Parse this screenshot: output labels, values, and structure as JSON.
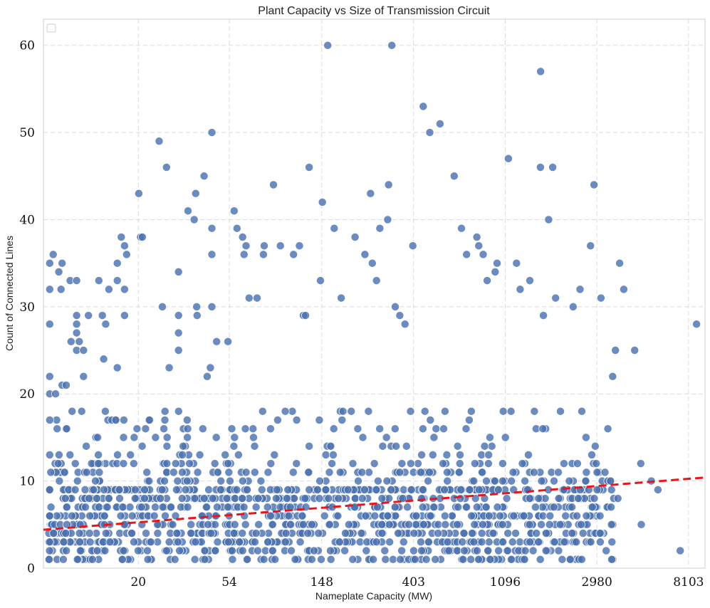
{
  "chart_data": {
    "type": "scatter",
    "title": "Plant Capacity vs Size of Transmission Circuit",
    "xlabel": "Nameplate Capacity (MW)",
    "ylabel": "Count of Connected Lines",
    "x_scale": "log",
    "xlim": [
      7.1,
      9700
    ],
    "ylim": [
      0,
      63
    ],
    "x_ticks": [
      20,
      54,
      148,
      403,
      1096,
      2980,
      8103
    ],
    "x_tick_labels": [
      "20",
      "54",
      "148",
      "403",
      "1096",
      "2980",
      "8103"
    ],
    "y_ticks": [
      0,
      10,
      20,
      30,
      40,
      50,
      60
    ],
    "y_tick_labels": [
      "0",
      "10",
      "20",
      "30",
      "40",
      "50",
      "60"
    ],
    "grid": true,
    "legend": "top-left (empty)",
    "colors": {
      "points": "#4c72b0",
      "trend": "#e8161b"
    },
    "trend_line": {
      "style": "dashed",
      "x": [
        7.1,
        9700
      ],
      "y": [
        4.4,
        10.4
      ]
    },
    "series": [
      {
        "points": [
          [
            7.6,
            35
          ],
          [
            7.6,
            32
          ],
          [
            7.6,
            28
          ],
          [
            7.6,
            22
          ],
          [
            7.6,
            20
          ],
          [
            7.6,
            17
          ],
          [
            7.6,
            13
          ],
          [
            7.6,
            9
          ],
          [
            7.6,
            6
          ],
          [
            7.6,
            3
          ],
          [
            7.9,
            36
          ],
          [
            8.1,
            20
          ],
          [
            8.4,
            34
          ],
          [
            8.6,
            32
          ],
          [
            8.7,
            35
          ],
          [
            8.7,
            21
          ],
          [
            9.1,
            21
          ],
          [
            9.5,
            33
          ],
          [
            9.6,
            26
          ],
          [
            9.7,
            18
          ],
          [
            10.2,
            33
          ],
          [
            10.2,
            29
          ],
          [
            10.2,
            28
          ],
          [
            10.2,
            27
          ],
          [
            10.2,
            25
          ],
          [
            10.5,
            26
          ],
          [
            11.0,
            25
          ],
          [
            11.0,
            22
          ],
          [
            11.6,
            29
          ],
          [
            13.0,
            33
          ],
          [
            13.5,
            29
          ],
          [
            13.7,
            24
          ],
          [
            14.0,
            28
          ],
          [
            14.5,
            32
          ],
          [
            15.9,
            35
          ],
          [
            15.9,
            33
          ],
          [
            15.9,
            23
          ],
          [
            16.6,
            38
          ],
          [
            17.2,
            37
          ],
          [
            17.6,
            36
          ],
          [
            17.2,
            32
          ],
          [
            17.2,
            29
          ],
          [
            20.1,
            43
          ],
          [
            20.5,
            38
          ],
          [
            20.9,
            38
          ],
          [
            25.1,
            49
          ],
          [
            27.2,
            46
          ],
          [
            26.0,
            30
          ],
          [
            28.0,
            23
          ],
          [
            31.0,
            34
          ],
          [
            31.0,
            29
          ],
          [
            31.0,
            27
          ],
          [
            31.0,
            25
          ],
          [
            34.4,
            41
          ],
          [
            36.8,
            40
          ],
          [
            37.4,
            43
          ],
          [
            38.0,
            29
          ],
          [
            37.8,
            30
          ],
          [
            41.0,
            45
          ],
          [
            42.4,
            22
          ],
          [
            43.9,
            23
          ],
          [
            44.6,
            50
          ],
          [
            44.6,
            39
          ],
          [
            44.6,
            36
          ],
          [
            44.6,
            30
          ],
          [
            47.0,
            26
          ],
          [
            53.2,
            26
          ],
          [
            56.9,
            41
          ],
          [
            58.7,
            39
          ],
          [
            62.4,
            38
          ],
          [
            63.4,
            36
          ],
          [
            64.8,
            37
          ],
          [
            67.0,
            31
          ],
          [
            73.1,
            31
          ],
          [
            78.3,
            36
          ],
          [
            79.0,
            37
          ],
          [
            87.4,
            44
          ],
          [
            94.2,
            37
          ],
          [
            108.8,
            36
          ],
          [
            116.0,
            37
          ],
          [
            121.0,
            29
          ],
          [
            124.0,
            29
          ],
          [
            129.0,
            46
          ],
          [
            145.9,
            33
          ],
          [
            149.0,
            42
          ],
          [
            158.0,
            60
          ],
          [
            169.5,
            39
          ],
          [
            183.0,
            31
          ],
          [
            213.0,
            38
          ],
          [
            237.0,
            36
          ],
          [
            252.0,
            43
          ],
          [
            257.0,
            35
          ],
          [
            269.0,
            33
          ],
          [
            279.0,
            39
          ],
          [
            304.0,
            40
          ],
          [
            307.0,
            44
          ],
          [
            318.0,
            60
          ],
          [
            330.0,
            30
          ],
          [
            347.0,
            29
          ],
          [
            367.0,
            28
          ],
          [
            400.0,
            37
          ],
          [
            448.0,
            53
          ],
          [
            481.0,
            50
          ],
          [
            538.0,
            51
          ],
          [
            628.0,
            45
          ],
          [
            680.0,
            39
          ],
          [
            719.0,
            36
          ],
          [
            804.0,
            38
          ],
          [
            821.0,
            37
          ],
          [
            862.0,
            36
          ],
          [
            900.0,
            33
          ],
          [
            982.0,
            34
          ],
          [
            1003.0,
            35
          ],
          [
            1135.0,
            47
          ],
          [
            1240.0,
            35
          ],
          [
            1290.0,
            32
          ],
          [
            1434.0,
            33
          ],
          [
            1612.0,
            57
          ],
          [
            1610.0,
            46
          ],
          [
            1663.0,
            29
          ],
          [
            1760.0,
            40
          ],
          [
            1840.0,
            46
          ],
          [
            1900.0,
            31
          ],
          [
            2300.0,
            30
          ],
          [
            2480.0,
            32
          ],
          [
            2780.0,
            37
          ],
          [
            2888.0,
            44
          ],
          [
            3117.0,
            31
          ],
          [
            3540.0,
            22
          ],
          [
            3820.0,
            35
          ],
          [
            3997.0,
            32
          ],
          [
            4500.0,
            25
          ],
          [
            4811.0,
            12
          ],
          [
            5398.0,
            10
          ],
          [
            5803.0,
            9
          ],
          [
            7400.0,
            2
          ],
          [
            8840.0,
            28
          ],
          [
            4840.0,
            5
          ],
          [
            3750.0,
            8
          ],
          [
            3650.0,
            25
          ]
        ]
      }
    ]
  }
}
